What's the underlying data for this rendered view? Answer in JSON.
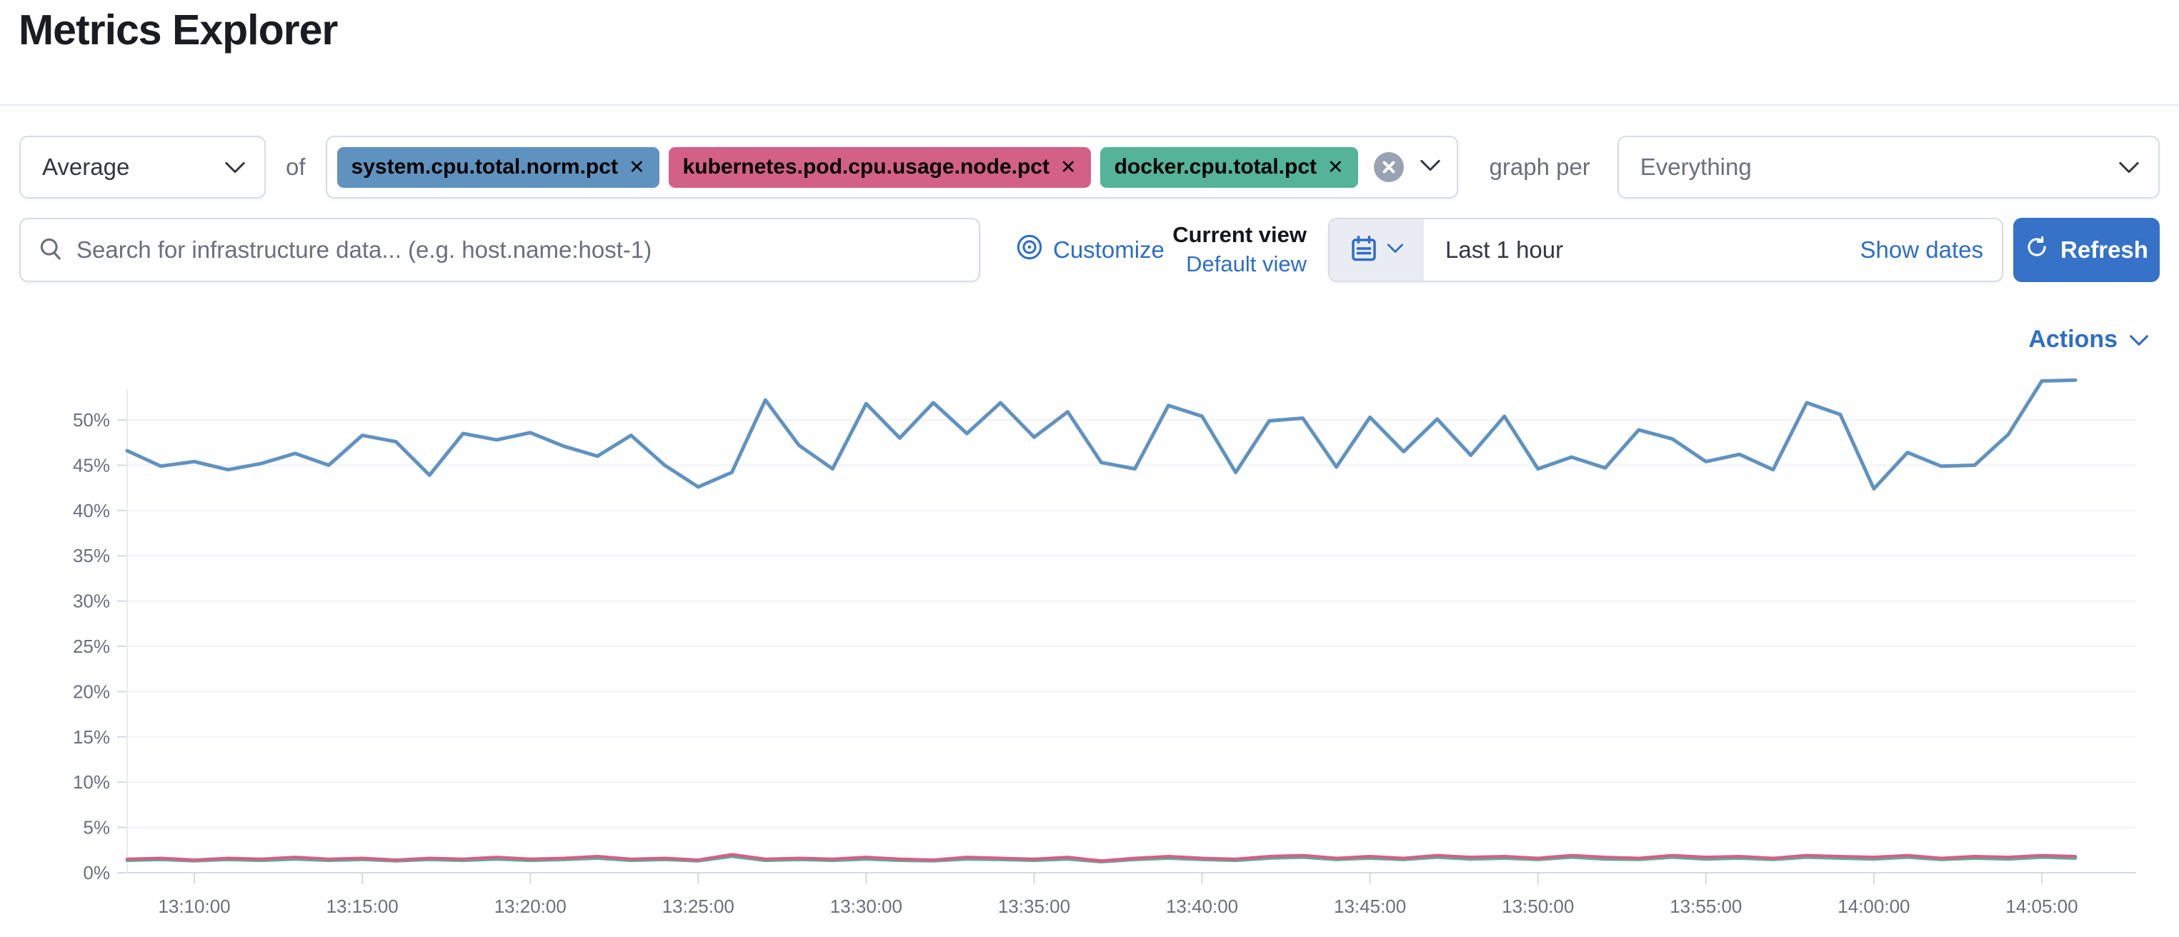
{
  "page": {
    "title": "Metrics Explorer"
  },
  "colors": {
    "accent_link": "#2E6EC6",
    "refresh_button": "#3572C8",
    "badge_blue": "#6092C0",
    "badge_pink": "#D36086",
    "badge_green": "#54B399",
    "clear_circle": "#98A2B3",
    "muted_text": "#69707D",
    "axis_line": "#D3DAE6",
    "gridline": "#F0F2F7"
  },
  "toolbar": {
    "aggregation": {
      "value": "Average"
    },
    "of_label": "of",
    "metrics": [
      {
        "label": "system.cpu.total.norm.pct",
        "color": "#6092C0",
        "remove_label": "✕"
      },
      {
        "label": "kubernetes.pod.cpu.usage.node.pct",
        "color": "#D36086",
        "remove_label": "✕"
      },
      {
        "label": "docker.cpu.total.pct",
        "color": "#54B399",
        "remove_label": "✕"
      }
    ],
    "graph_per_label": "graph per",
    "group_by": {
      "value": "Everything"
    }
  },
  "secondary_bar": {
    "search": {
      "placeholder": "Search for infrastructure data... (e.g. host.name:host-1)",
      "value": ""
    },
    "customize_label": "Customize",
    "view_picker": {
      "current_label": "Current view",
      "selected_view": "Default view"
    },
    "time_picker": {
      "value": "Last 1 hour",
      "show_dates_label": "Show dates"
    },
    "refresh_label": "Refresh"
  },
  "chart_header": {
    "actions_label": "Actions"
  },
  "chart_data": {
    "type": "line",
    "title": "",
    "xlabel": "",
    "ylabel": "",
    "legend": "none",
    "grid": true,
    "ylim": [
      0,
      54.5
    ],
    "y_tick_step_pct": 5,
    "y_ticks": [
      "0%",
      "5%",
      "10%",
      "15%",
      "20%",
      "25%",
      "30%",
      "35%",
      "40%",
      "45%",
      "50%"
    ],
    "x_ticks": [
      "13:10:00",
      "13:15:00",
      "13:20:00",
      "13:25:00",
      "13:30:00",
      "13:35:00",
      "13:40:00",
      "13:45:00",
      "13:50:00",
      "13:55:00",
      "14:00:00",
      "14:05:00"
    ],
    "x_start": "13:08:00",
    "x_interval_seconds": 60,
    "series": [
      {
        "name": "system.cpu.total.norm.pct",
        "color": "#6092C0",
        "unit": "%",
        "values": [
          46.6,
          44.9,
          45.4,
          44.5,
          45.2,
          46.3,
          45.0,
          48.3,
          47.6,
          43.9,
          48.5,
          47.8,
          48.6,
          47.1,
          46.0,
          48.3,
          45.0,
          42.6,
          44.2,
          52.2,
          47.2,
          44.6,
          51.8,
          48.0,
          51.9,
          48.5,
          51.9,
          48.1,
          50.9,
          45.3,
          44.6,
          51.6,
          50.4,
          44.2,
          49.9,
          50.2,
          44.8,
          50.3,
          46.5,
          50.1,
          46.1,
          50.4,
          44.6,
          45.9,
          44.7,
          48.9,
          47.9,
          45.4,
          46.2,
          44.5,
          51.9,
          50.6,
          42.4,
          46.4,
          44.9,
          45.0,
          48.4,
          54.3,
          54.4
        ]
      },
      {
        "name": "kubernetes.pod.cpu.usage.node.pct",
        "color": "#D36086",
        "unit": "%",
        "values": [
          1.5,
          1.6,
          1.4,
          1.6,
          1.5,
          1.7,
          1.5,
          1.6,
          1.4,
          1.6,
          1.5,
          1.7,
          1.5,
          1.6,
          1.8,
          1.5,
          1.6,
          1.4,
          2.0,
          1.5,
          1.6,
          1.5,
          1.7,
          1.5,
          1.4,
          1.7,
          1.6,
          1.5,
          1.7,
          1.3,
          1.6,
          1.8,
          1.6,
          1.5,
          1.8,
          1.9,
          1.6,
          1.8,
          1.6,
          1.9,
          1.7,
          1.8,
          1.6,
          1.9,
          1.7,
          1.6,
          1.9,
          1.7,
          1.8,
          1.6,
          1.9,
          1.8,
          1.7,
          1.9,
          1.6,
          1.8,
          1.7,
          1.9,
          1.8
        ]
      },
      {
        "name": "docker.cpu.total.pct",
        "color": "#54B399",
        "unit": "%",
        "values": [
          1.35,
          1.45,
          1.3,
          1.45,
          1.35,
          1.5,
          1.35,
          1.45,
          1.3,
          1.45,
          1.35,
          1.5,
          1.35,
          1.45,
          1.6,
          1.35,
          1.45,
          1.3,
          1.8,
          1.35,
          1.45,
          1.35,
          1.5,
          1.35,
          1.3,
          1.5,
          1.45,
          1.35,
          1.5,
          1.2,
          1.45,
          1.6,
          1.45,
          1.35,
          1.6,
          1.7,
          1.45,
          1.6,
          1.45,
          1.7,
          1.5,
          1.6,
          1.45,
          1.7,
          1.5,
          1.45,
          1.7,
          1.5,
          1.6,
          1.45,
          1.7,
          1.6,
          1.5,
          1.7,
          1.45,
          1.6,
          1.5,
          1.7,
          1.6
        ]
      }
    ]
  }
}
